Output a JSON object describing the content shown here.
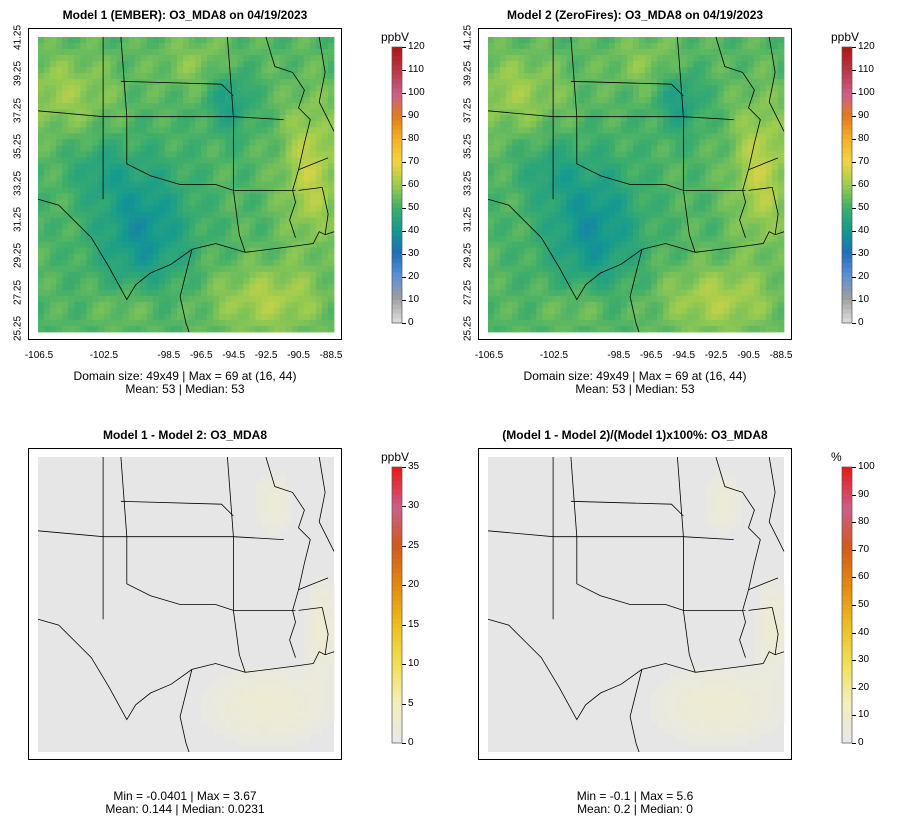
{
  "panels": [
    {
      "id": "p1",
      "title": "Model 1 (EMBER): O3_MDA8 on 04/19/2023",
      "stats_line1": "Domain size: 49x49 | Max = 69 at (16, 44)",
      "stats_line2": "Mean: 53 |  Median: 53",
      "unit": "ppbV",
      "colorbar_labels": [
        "120",
        "110",
        "100",
        "90",
        "80",
        "70",
        "60",
        "50",
        "40",
        "30",
        "20",
        "10",
        "0"
      ],
      "y_ticks": [
        "41.25",
        "39.25",
        "37.25",
        "35.25",
        "33.25",
        "31.25",
        "29.25",
        "27.25",
        "25.25"
      ],
      "x_ticks": [
        "-106.5",
        "-102.5",
        "-98.5",
        "-96.5",
        "-94.5",
        "-92.5",
        "-90.5",
        "-88.5"
      ],
      "field": "ozone",
      "variant": "ember"
    },
    {
      "id": "p2",
      "title": "Model 2 (ZeroFires): O3_MDA8 on 04/19/2023",
      "stats_line1": "Domain size: 49x49 | Max = 69 at (16, 44)",
      "stats_line2": "Mean: 53 |  Median: 53",
      "unit": "ppbV",
      "colorbar_labels": [
        "120",
        "110",
        "100",
        "90",
        "80",
        "70",
        "60",
        "50",
        "40",
        "30",
        "20",
        "10",
        "0"
      ],
      "y_ticks": [
        "41.25",
        "39.25",
        "37.25",
        "35.25",
        "33.25",
        "31.25",
        "29.25",
        "27.25",
        "25.25"
      ],
      "x_ticks": [
        "-106.5",
        "-102.5",
        "-98.5",
        "-96.5",
        "-94.5",
        "-92.5",
        "-90.5",
        "-88.5"
      ],
      "field": "ozone",
      "variant": "zerofires"
    },
    {
      "id": "p3",
      "title": "Model 1 - Model 2: O3_MDA8",
      "stats_line1": "Min = -0.0401 | Max = 3.67",
      "stats_line2": "Mean: 0.144 |  Median: 0.0231",
      "unit": "ppbV",
      "colorbar_labels": [
        "35",
        "30",
        "25",
        "20",
        "15",
        "10",
        "5",
        "0"
      ],
      "field": "difference"
    },
    {
      "id": "p4",
      "title": "(Model 1 - Model 2)/(Model 1)x100%: O3_MDA8",
      "stats_line1": "Min = -0.1 | Max = 5.6",
      "stats_line2": "Mean: 0.2 |  Median: 0",
      "unit": "%",
      "colorbar_labels": [
        "100",
        "90",
        "80",
        "70",
        "60",
        "50",
        "40",
        "30",
        "20",
        "10",
        "0"
      ],
      "field": "difference"
    }
  ],
  "colors": {
    "ozone_scale": [
      "#d9d9d9",
      "#9e9e9e",
      "#5c8fd6",
      "#1d6fb8",
      "#149a8f",
      "#3fae6a",
      "#9ccc4f",
      "#f0d640",
      "#f5b325",
      "#e27d1a",
      "#c9608a",
      "#b93a4a",
      "#b01818"
    ],
    "diff_scale": [
      "#e8e8e8",
      "#f3efb8",
      "#f1df55",
      "#edbe1d",
      "#e38a0f",
      "#cf5a1c",
      "#c9608a",
      "#e81a1a"
    ],
    "map_background": "#e6e6e6",
    "border_lines": "#000000"
  }
}
